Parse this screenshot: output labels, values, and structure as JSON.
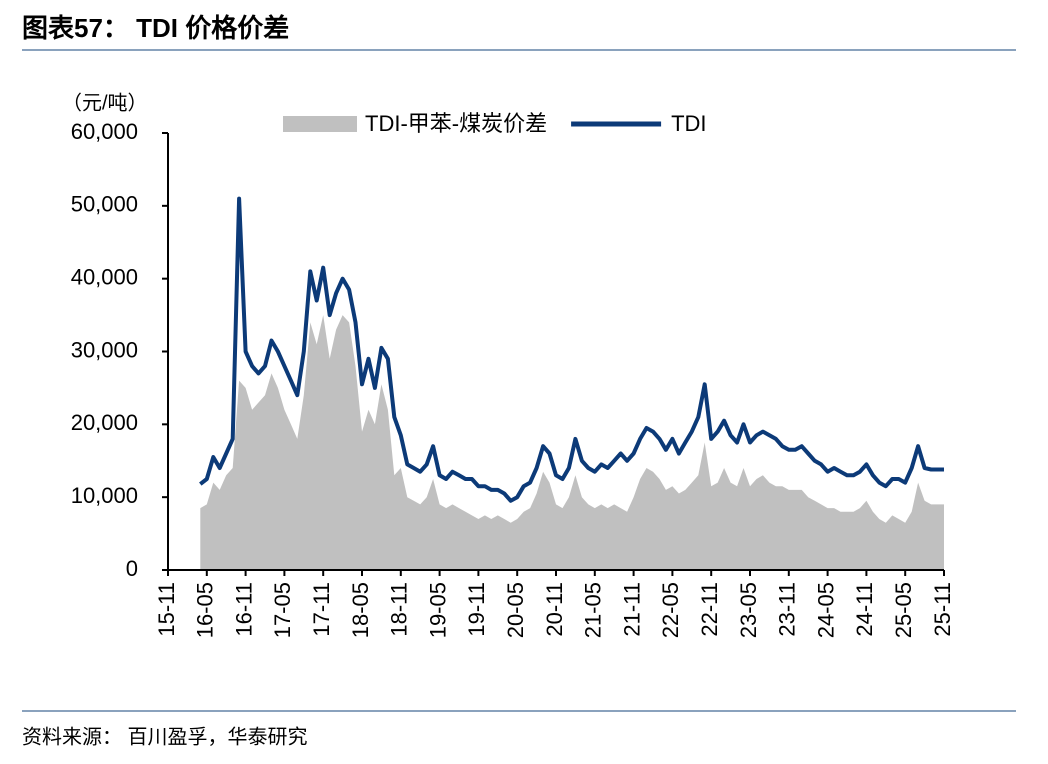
{
  "chart_data": {
    "type": "area_line",
    "title": "图表57： TDI 价格价差",
    "y_axis_label": "（元/吨）",
    "source": "资料来源： 百川盈孚，华泰研究",
    "x": [
      "16-04",
      "16-05",
      "16-06",
      "16-07",
      "16-08",
      "16-09",
      "16-10",
      "16-11",
      "16-12",
      "17-01",
      "17-02",
      "17-03",
      "17-04",
      "17-05",
      "17-06",
      "17-07",
      "17-08",
      "17-09",
      "17-10",
      "17-11",
      "17-12",
      "18-01",
      "18-02",
      "18-03",
      "18-04",
      "18-05",
      "18-06",
      "18-07",
      "18-08",
      "18-09",
      "18-10",
      "18-11",
      "18-12",
      "19-01",
      "19-02",
      "19-03",
      "19-04",
      "19-05",
      "19-06",
      "19-07",
      "19-08",
      "19-09",
      "19-10",
      "19-11",
      "19-12",
      "20-01",
      "20-02",
      "20-03",
      "20-04",
      "20-05",
      "20-06",
      "20-07",
      "20-08",
      "20-09",
      "20-10",
      "20-11",
      "20-12",
      "21-01",
      "21-02",
      "21-03",
      "21-04",
      "21-05",
      "21-06",
      "21-07",
      "21-08",
      "21-09",
      "21-10",
      "21-11",
      "21-12",
      "22-01",
      "22-02",
      "22-03",
      "22-04",
      "22-05",
      "22-06",
      "22-07",
      "22-08",
      "22-09",
      "22-10",
      "22-11",
      "22-12",
      "23-01",
      "23-02",
      "23-03",
      "23-04",
      "23-05",
      "23-06",
      "23-07",
      "23-08",
      "23-09",
      "23-10",
      "23-11",
      "23-12",
      "24-01",
      "24-02",
      "24-03",
      "24-04",
      "24-05",
      "24-06",
      "24-07",
      "24-08",
      "24-09",
      "24-10",
      "24-11",
      "24-12",
      "25-01",
      "25-02",
      "25-03",
      "25-04",
      "25-05",
      "25-06",
      "25-07",
      "25-08",
      "25-09",
      "25-10",
      "25-11"
    ],
    "series": [
      {
        "name": "TDI-甲苯-煤炭价差",
        "kind": "area",
        "color": "#c0c0c0",
        "values": [
          8500,
          9000,
          12000,
          11000,
          13000,
          14000,
          26000,
          25000,
          22000,
          23000,
          24000,
          27000,
          25000,
          22000,
          20000,
          18000,
          24000,
          34000,
          31000,
          35000,
          29000,
          33000,
          35000,
          34000,
          28000,
          19000,
          22000,
          20000,
          25500,
          22000,
          13000,
          14000,
          10000,
          9500,
          9000,
          10000,
          12500,
          9000,
          8500,
          9000,
          8500,
          8000,
          7500,
          7000,
          7500,
          7000,
          7500,
          7000,
          6500,
          7000,
          8000,
          8500,
          10500,
          13500,
          12000,
          9000,
          8500,
          10000,
          13000,
          10000,
          9000,
          8500,
          9000,
          8500,
          9000,
          8500,
          8000,
          10000,
          12500,
          14000,
          13500,
          12500,
          11000,
          11500,
          10500,
          11000,
          12000,
          13000,
          17500,
          11500,
          12000,
          14000,
          12000,
          11500,
          14000,
          11500,
          12500,
          13000,
          12000,
          11500,
          11500,
          11000,
          11000,
          11000,
          10000,
          9500,
          9000,
          8500,
          8500,
          8000,
          8000,
          8000,
          8500,
          9500,
          8000,
          7000,
          6500,
          7500,
          7000,
          6500,
          8000,
          12000,
          9500,
          9000,
          9000,
          9000
        ]
      },
      {
        "name": "TDI",
        "kind": "line",
        "color": "#0c3a78",
        "values": [
          11800,
          12500,
          15500,
          14000,
          16000,
          18000,
          51000,
          30000,
          28000,
          27000,
          28000,
          31500,
          30000,
          28000,
          26000,
          24000,
          30000,
          41000,
          37000,
          41500,
          35000,
          38000,
          40000,
          38500,
          34000,
          25500,
          29000,
          25000,
          30500,
          29000,
          21000,
          18500,
          14500,
          14000,
          13500,
          14500,
          17000,
          13000,
          12500,
          13500,
          13000,
          12500,
          12500,
          11500,
          11500,
          11000,
          11000,
          10500,
          9500,
          10000,
          11500,
          12000,
          14000,
          17000,
          16000,
          13000,
          12500,
          14000,
          18000,
          15000,
          14000,
          13500,
          14500,
          14000,
          15000,
          16000,
          15000,
          16000,
          18000,
          19500,
          19000,
          18000,
          16500,
          18000,
          16000,
          17500,
          19000,
          21000,
          25500,
          18000,
          19000,
          20500,
          18500,
          17500,
          20000,
          17500,
          18500,
          19000,
          18500,
          18000,
          17000,
          16500,
          16500,
          17000,
          16000,
          15000,
          14500,
          13500,
          14000,
          13500,
          13000,
          13000,
          13500,
          14500,
          13000,
          12000,
          11500,
          12500,
          12500,
          12000,
          14000,
          17000,
          14000,
          13800,
          13800,
          13800
        ]
      }
    ],
    "xlim": [
      "15-11",
      "25-11"
    ],
    "xticks": [
      "15-11",
      "16-05",
      "16-11",
      "17-05",
      "17-11",
      "18-05",
      "18-11",
      "19-05",
      "19-11",
      "20-05",
      "20-11",
      "21-05",
      "21-11",
      "22-05",
      "22-11",
      "23-05",
      "23-11",
      "24-05",
      "24-11",
      "25-05",
      "25-11"
    ],
    "ylim": [
      0,
      60000
    ],
    "yticks": [
      0,
      {
        "value": 10000,
        "label": "10,000"
      },
      {
        "value": 20000,
        "label": "20,000"
      },
      {
        "value": 30000,
        "label": "30,000"
      },
      {
        "value": 40000,
        "label": "40,000"
      },
      {
        "value": 50000,
        "label": "50,000"
      },
      {
        "value": 60000,
        "label": "60,000"
      }
    ]
  }
}
